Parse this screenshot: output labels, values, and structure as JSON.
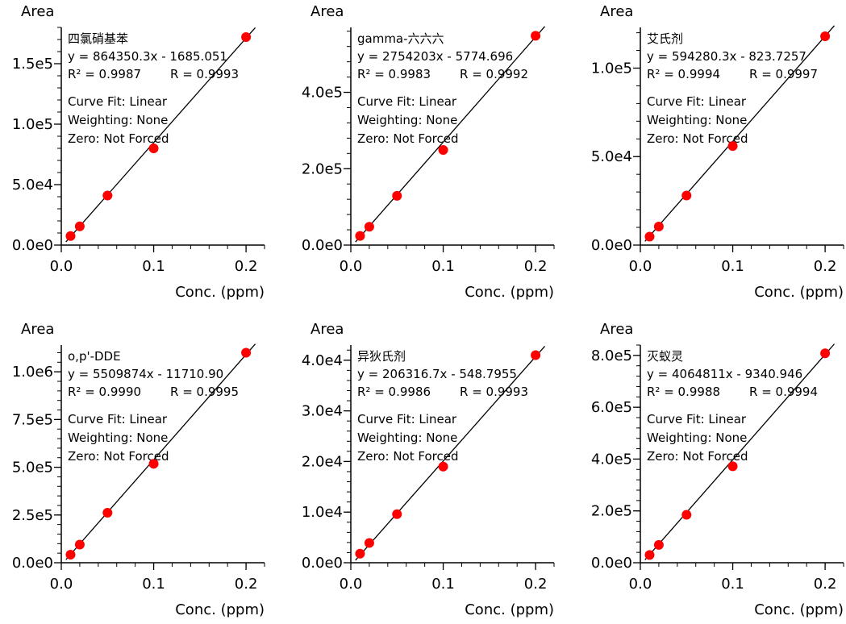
{
  "chart_data": [
    {
      "type": "scatter",
      "compound": "四氯硝基苯",
      "equation": "y = 864350.3x - 1685.051",
      "r2_text": "R² = 0.9987",
      "r_text": "R = 0.9993",
      "fit_label": "Curve Fit: Linear",
      "weighting_label": "Weighting: None",
      "zero_label": "Zero: Not Forced",
      "xlabel": "Conc. (ppm)",
      "ylabel": "Area",
      "xlim": [
        0,
        0.22
      ],
      "ylim": [
        0,
        180000
      ],
      "xticks": [
        0,
        0.1,
        0.2
      ],
      "xtick_labels": [
        "0.0",
        "0.1",
        "0.2"
      ],
      "yticks": [
        0,
        50000,
        100000,
        150000
      ],
      "ytick_labels": [
        "0.0e0",
        "5.0e4",
        "1.0e5",
        "1.5e5"
      ],
      "fit": {
        "slope": 864350.3,
        "intercept": -1685.051
      },
      "x": [
        0.01,
        0.02,
        0.05,
        0.1,
        0.2
      ],
      "y": [
        7500,
        15500,
        41000,
        80000,
        172000
      ],
      "marker_color": "#ff0000"
    },
    {
      "type": "scatter",
      "compound": "gamma-六六六",
      "equation": "y = 2754203x - 5774.696",
      "r2_text": "R² = 0.9983",
      "r_text": "R = 0.9992",
      "fit_label": "Curve Fit: Linear",
      "weighting_label": "Weighting: None",
      "zero_label": "Zero: Not Forced",
      "xlabel": "Conc. (ppm)",
      "ylabel": "Area",
      "xlim": [
        0,
        0.22
      ],
      "ylim": [
        0,
        570000
      ],
      "xticks": [
        0,
        0.1,
        0.2
      ],
      "xtick_labels": [
        "0.0",
        "0.1",
        "0.2"
      ],
      "yticks": [
        0,
        200000,
        400000
      ],
      "ytick_labels": [
        "0.0e0",
        "2.0e5",
        "4.0e5"
      ],
      "fit": {
        "slope": 2754203,
        "intercept": -5774.696
      },
      "x": [
        0.01,
        0.02,
        0.05,
        0.1,
        0.2
      ],
      "y": [
        24000,
        48000,
        129000,
        249000,
        548000
      ],
      "marker_color": "#ff0000"
    },
    {
      "type": "scatter",
      "compound": "艾氏剂",
      "equation": "y = 594280.3x - 823.7257",
      "r2_text": "R² = 0.9994",
      "r_text": "R = 0.9997",
      "fit_label": "Curve Fit: Linear",
      "weighting_label": "Weighting: None",
      "zero_label": "Zero: Not Forced",
      "xlabel": "Conc. (ppm)",
      "ylabel": "Area",
      "xlim": [
        0,
        0.22
      ],
      "ylim": [
        0,
        123000
      ],
      "xticks": [
        0,
        0.1,
        0.2
      ],
      "xtick_labels": [
        "0.0",
        "0.1",
        "0.2"
      ],
      "yticks": [
        0,
        50000,
        100000
      ],
      "ytick_labels": [
        "0.0e0",
        "5.0e4",
        "1.0e5"
      ],
      "fit": {
        "slope": 594280.3,
        "intercept": -823.7257
      },
      "x": [
        0.01,
        0.02,
        0.05,
        0.1,
        0.2
      ],
      "y": [
        4800,
        10500,
        28000,
        56000,
        118000
      ],
      "marker_color": "#ff0000"
    },
    {
      "type": "scatter",
      "compound": "o,p'-DDE",
      "equation": "y = 5509874x - 11710.90",
      "r2_text": "R² = 0.9990",
      "r_text": "R = 0.9995",
      "fit_label": "Curve Fit: Linear",
      "weighting_label": "Weighting: None",
      "zero_label": "Zero: Not Forced",
      "xlabel": "Conc. (ppm)",
      "ylabel": "Area",
      "xlim": [
        0,
        0.22
      ],
      "ylim": [
        0,
        1140000
      ],
      "xticks": [
        0,
        0.1,
        0.2
      ],
      "xtick_labels": [
        "0.0",
        "0.1",
        "0.2"
      ],
      "yticks": [
        0,
        250000,
        500000,
        750000,
        1000000
      ],
      "ytick_labels": [
        "0.0e0",
        "2.5e5",
        "5.0e5",
        "7.5e5",
        "1.0e6"
      ],
      "fit": {
        "slope": 5509874,
        "intercept": -11710.9
      },
      "x": [
        0.01,
        0.02,
        0.05,
        0.1,
        0.2
      ],
      "y": [
        42000,
        95000,
        262000,
        518000,
        1100000
      ],
      "marker_color": "#ff0000"
    },
    {
      "type": "scatter",
      "compound": "异狄氏剂",
      "equation": "y = 206316.7x - 548.7955",
      "r2_text": "R² = 0.9986",
      "r_text": "R = 0.9993",
      "fit_label": "Curve Fit: Linear",
      "weighting_label": "Weighting: None",
      "zero_label": "Zero: Not Forced",
      "xlabel": "Conc. (ppm)",
      "ylabel": "Area",
      "xlim": [
        0,
        0.22
      ],
      "ylim": [
        0,
        43000
      ],
      "xticks": [
        0,
        0.1,
        0.2
      ],
      "xtick_labels": [
        "0.0",
        "0.1",
        "0.2"
      ],
      "yticks": [
        0,
        10000,
        20000,
        30000,
        40000
      ],
      "ytick_labels": [
        "0.0e0",
        "1.0e4",
        "2.0e4",
        "3.0e4",
        "4.0e4"
      ],
      "fit": {
        "slope": 206316.7,
        "intercept": -548.7955
      },
      "x": [
        0.01,
        0.02,
        0.05,
        0.1,
        0.2
      ],
      "y": [
        1800,
        3900,
        9600,
        19000,
        41000
      ],
      "marker_color": "#ff0000"
    },
    {
      "type": "scatter",
      "compound": "灭蚁灵",
      "equation": "y = 4064811x - 9340.946",
      "r2_text": "R² = 0.9988",
      "r_text": "R = 0.9994",
      "fit_label": "Curve Fit: Linear",
      "weighting_label": "Weighting: None",
      "zero_label": "Zero: Not Forced",
      "xlabel": "Conc. (ppm)",
      "ylabel": "Area",
      "xlim": [
        0,
        0.22
      ],
      "ylim": [
        0,
        840000
      ],
      "xticks": [
        0,
        0.1,
        0.2
      ],
      "xtick_labels": [
        "0.0",
        "0.1",
        "0.2"
      ],
      "yticks": [
        0,
        200000,
        400000,
        600000,
        800000
      ],
      "ytick_labels": [
        "0.0e0",
        "2.0e5",
        "4.0e5",
        "6.0e5",
        "8.0e5"
      ],
      "fit": {
        "slope": 4064811,
        "intercept": -9340.946
      },
      "x": [
        0.01,
        0.02,
        0.05,
        0.1,
        0.2
      ],
      "y": [
        30000,
        69000,
        185000,
        372000,
        808000
      ],
      "marker_color": "#ff0000"
    }
  ]
}
